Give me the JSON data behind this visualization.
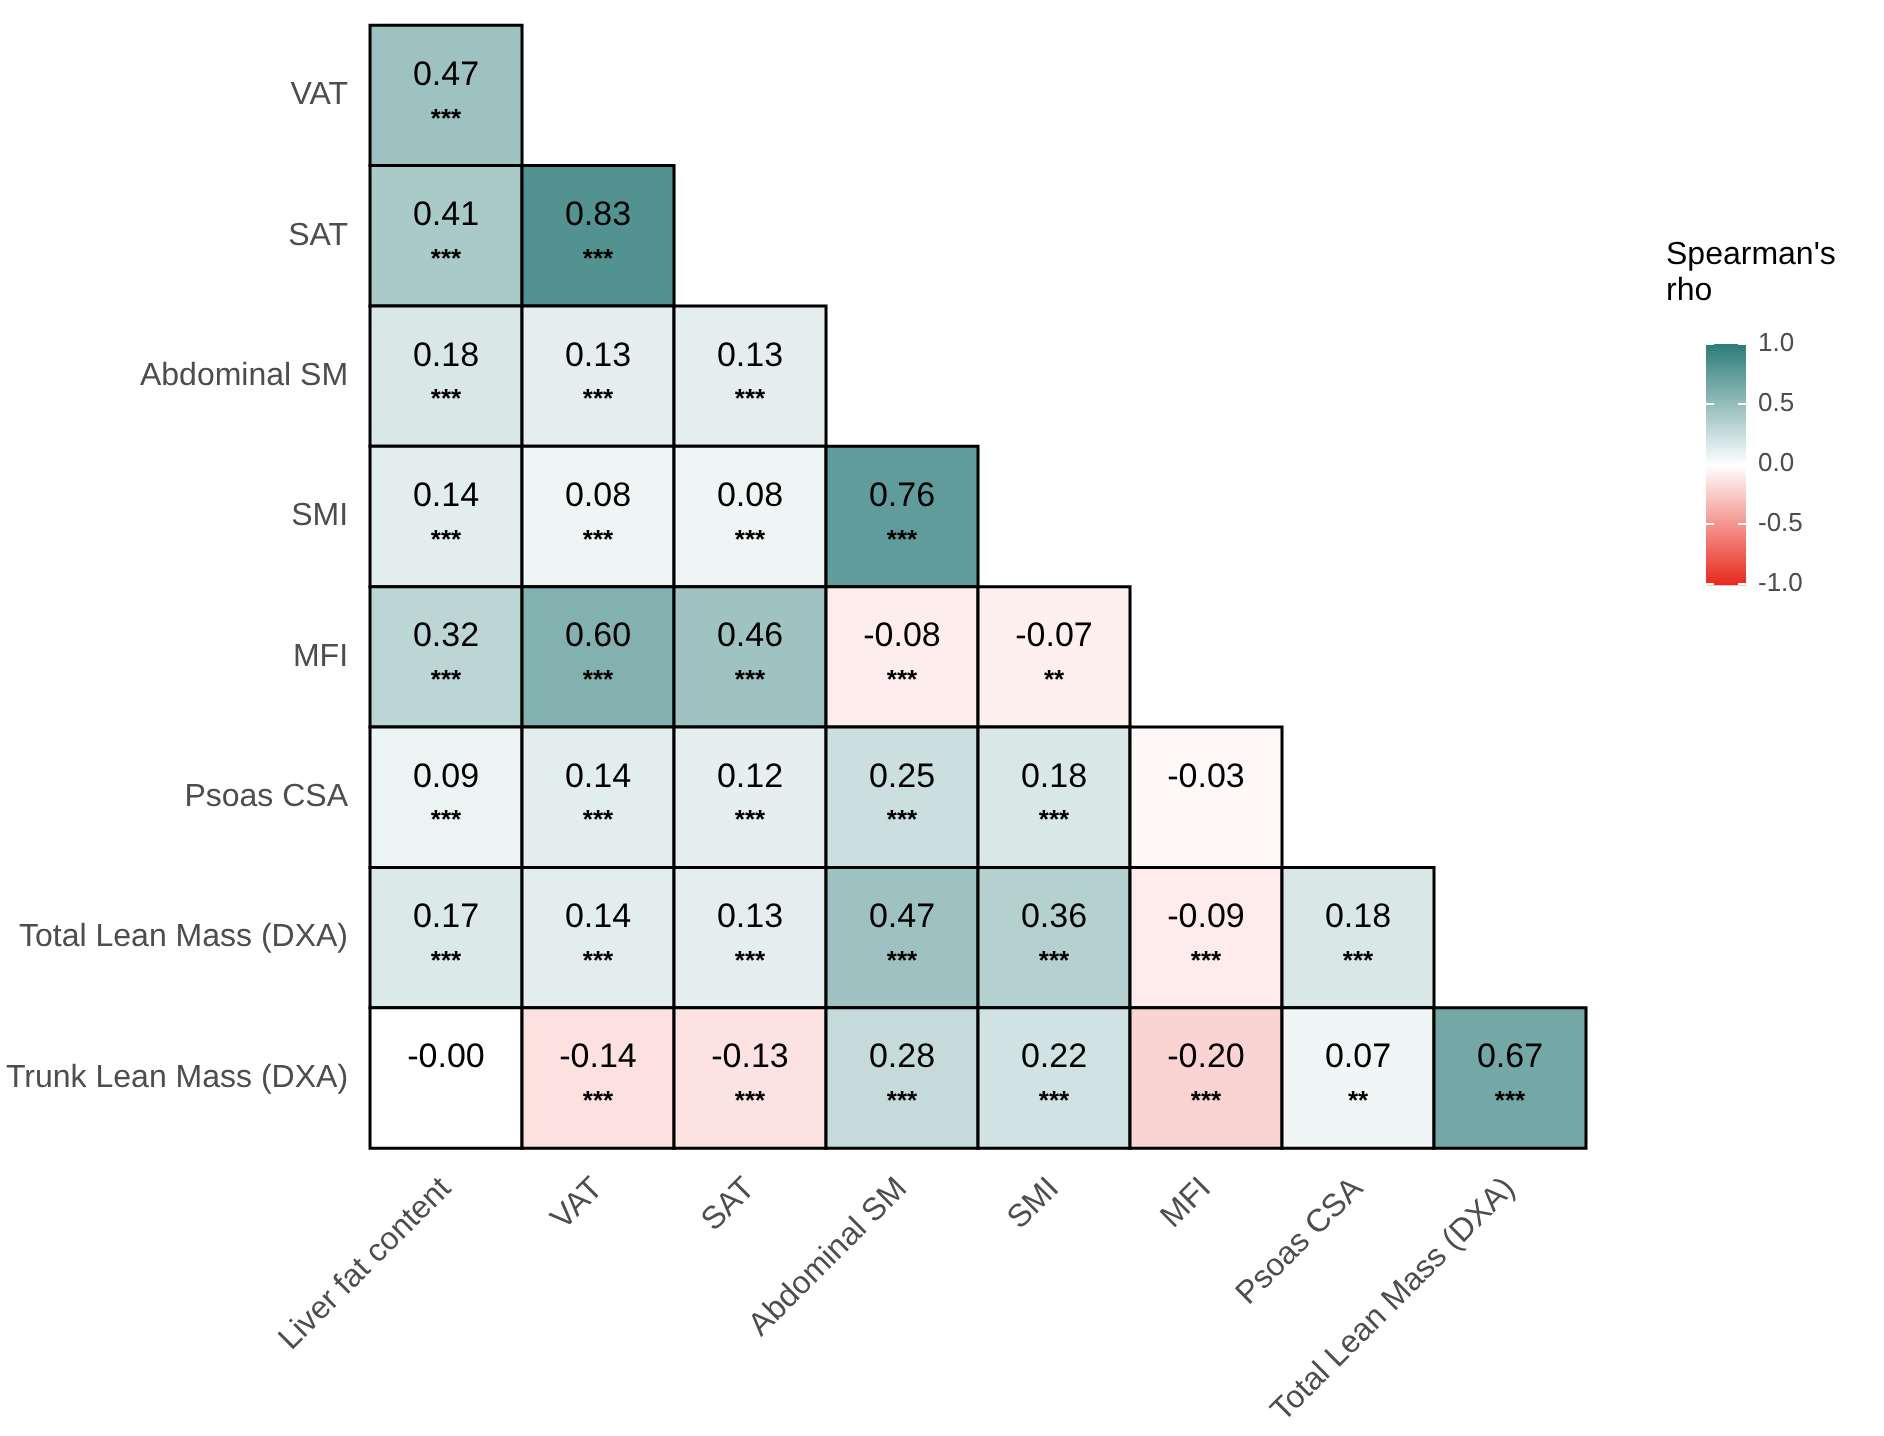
{
  "chart_data": {
    "type": "heatmap",
    "clabel": "Spearman's rho",
    "categories": [
      "Liver fat content",
      "VAT",
      "SAT",
      "Abdominal SM",
      "SMI",
      "MFI",
      "Psoas CSA",
      "Total Lean Mass (DXA)"
    ],
    "y_categories": [
      "VAT",
      "SAT",
      "Abdominal SM",
      "SMI",
      "MFI",
      "Psoas CSA",
      "Total Lean Mass (DXA)",
      "Trunk Lean Mass (DXA)"
    ],
    "cells": [
      [
        0.47,
        null,
        null,
        null,
        null,
        null,
        null,
        null
      ],
      [
        0.41,
        0.83,
        null,
        null,
        null,
        null,
        null,
        null
      ],
      [
        0.18,
        0.13,
        0.13,
        null,
        null,
        null,
        null,
        null
      ],
      [
        0.14,
        0.08,
        0.08,
        0.76,
        null,
        null,
        null,
        null
      ],
      [
        0.32,
        0.6,
        0.46,
        -0.08,
        -0.07,
        null,
        null,
        null
      ],
      [
        0.09,
        0.14,
        0.12,
        0.25,
        0.18,
        -0.03,
        null,
        null
      ],
      [
        0.17,
        0.14,
        0.13,
        0.47,
        0.36,
        -0.09,
        0.18,
        null
      ],
      [
        -0.0,
        -0.14,
        -0.13,
        0.28,
        0.22,
        -0.2,
        0.07,
        0.67
      ]
    ],
    "cell_labels": [
      [
        "0.47\n***",
        null,
        null,
        null,
        null,
        null,
        null,
        null
      ],
      [
        "0.41\n***",
        "0.83\n***",
        null,
        null,
        null,
        null,
        null,
        null
      ],
      [
        "0.18\n***",
        "0.13\n***",
        "0.13\n***",
        null,
        null,
        null,
        null,
        null
      ],
      [
        "0.14\n***",
        "0.08\n***",
        "0.08\n***",
        "0.76\n***",
        null,
        null,
        null,
        null
      ],
      [
        "0.32\n***",
        "0.60\n***",
        "0.46\n***",
        "-0.08\n***",
        "-0.07\n**",
        null,
        null,
        null
      ],
      [
        "0.09\n***",
        "0.14\n***",
        "0.12\n***",
        "0.25\n***",
        "0.18\n***",
        "-0.03",
        null,
        null
      ],
      [
        "0.17\n***",
        "0.14\n***",
        "0.13\n***",
        "0.47\n***",
        "0.36\n***",
        "-0.09\n***",
        "0.18\n***",
        null
      ],
      [
        "-0.00",
        "-0.14\n***",
        "-0.13\n***",
        "0.28\n***",
        "0.22\n***",
        "-0.20\n***",
        "0.07\n**",
        "0.67\n***"
      ]
    ],
    "clim": [
      -1,
      1
    ],
    "cticks": [
      {
        "value": 1,
        "label": "1.0"
      },
      {
        "value": 0.5,
        "label": "0.5"
      },
      {
        "value": 0,
        "label": "0.0"
      },
      {
        "value": -0.5,
        "label": "-0.5"
      },
      {
        "value": -1,
        "label": "-1.0"
      }
    ]
  }
}
